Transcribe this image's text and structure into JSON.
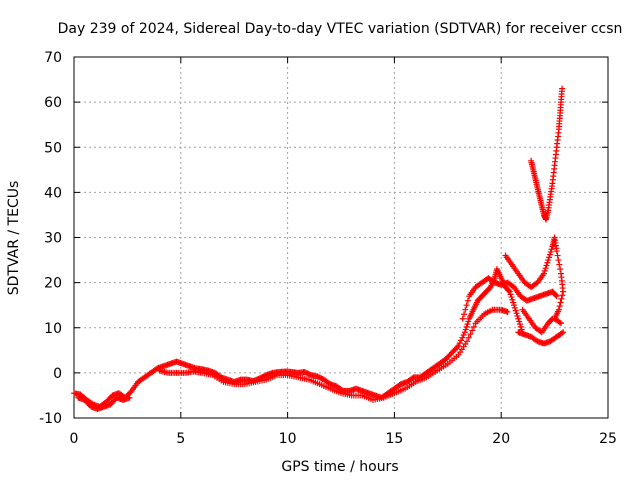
{
  "chart_data": {
    "type": "scatter",
    "title": "Day 239 of 2024, Sidereal Day-to-day VTEC variation (SDTVAR) for receiver ccsn",
    "xlabel": "GPS time / hours",
    "ylabel": "SDTVAR / TECUs",
    "xlim": [
      0,
      25
    ],
    "ylim": [
      -10,
      70
    ],
    "xticks": [
      0,
      5,
      10,
      15,
      20,
      25
    ],
    "yticks": [
      -10,
      0,
      10,
      20,
      30,
      40,
      50,
      60,
      70
    ],
    "grid": true,
    "marker": "+",
    "color": "#ff0000",
    "series": [
      {
        "name": "main",
        "points": [
          [
            0.0,
            -4.5
          ],
          [
            0.3,
            -4.8
          ],
          [
            0.6,
            -6
          ],
          [
            0.9,
            -7
          ],
          [
            1.2,
            -7.5
          ],
          [
            1.5,
            -6.5
          ],
          [
            1.8,
            -5
          ],
          [
            2.1,
            -4.5
          ],
          [
            2.4,
            -5.5
          ],
          [
            2.7,
            -4
          ],
          [
            3.0,
            -2
          ],
          [
            3.3,
            -1
          ],
          [
            3.6,
            0
          ],
          [
            3.9,
            1
          ],
          [
            4.2,
            1.5
          ],
          [
            4.5,
            2
          ],
          [
            4.8,
            2.5
          ],
          [
            5.1,
            2
          ],
          [
            5.4,
            1.5
          ],
          [
            5.7,
            1
          ],
          [
            6.0,
            0.8
          ],
          [
            6.3,
            0.5
          ],
          [
            6.6,
            0
          ],
          [
            6.9,
            -1
          ],
          [
            7.2,
            -1.5
          ],
          [
            7.5,
            -2
          ],
          [
            7.8,
            -1.5
          ],
          [
            8.1,
            -1.5
          ],
          [
            8.4,
            -1.8
          ],
          [
            8.7,
            -1.2
          ],
          [
            9.0,
            -0.5
          ],
          [
            9.3,
            0
          ],
          [
            9.6,
            0.2
          ],
          [
            9.9,
            0.3
          ],
          [
            10.2,
            0.2
          ],
          [
            10.5,
            0
          ],
          [
            10.8,
            0.2
          ],
          [
            11.1,
            -0.5
          ],
          [
            11.4,
            -0.8
          ],
          [
            11.7,
            -1.5
          ],
          [
            12.0,
            -2.5
          ],
          [
            12.3,
            -3
          ],
          [
            12.6,
            -4
          ],
          [
            12.9,
            -4
          ],
          [
            13.2,
            -3.5
          ],
          [
            13.5,
            -4
          ],
          [
            13.8,
            -4.5
          ],
          [
            14.1,
            -5
          ],
          [
            14.4,
            -5.5
          ],
          [
            14.7,
            -4.5
          ],
          [
            15.0,
            -3.5
          ],
          [
            15.3,
            -2.5
          ],
          [
            15.6,
            -2
          ],
          [
            15.9,
            -1
          ],
          [
            16.2,
            -1
          ],
          [
            16.5,
            0
          ],
          [
            16.8,
            1
          ],
          [
            17.1,
            2
          ],
          [
            17.4,
            3
          ],
          [
            17.7,
            4.5
          ],
          [
            18.0,
            6
          ],
          [
            18.3,
            9
          ],
          [
            18.5,
            12
          ],
          [
            18.7,
            14
          ],
          [
            18.9,
            16
          ],
          [
            19.1,
            17
          ],
          [
            19.3,
            18
          ],
          [
            19.5,
            19
          ],
          [
            19.7,
            21
          ],
          [
            19.8,
            23
          ],
          [
            20.0,
            21
          ],
          [
            20.2,
            19
          ],
          [
            20.4,
            18
          ],
          [
            20.6,
            15
          ],
          [
            20.8,
            12
          ],
          [
            21.0,
            9
          ]
        ]
      },
      {
        "name": "lower-band",
        "points": [
          [
            0.2,
            -5.5
          ],
          [
            0.5,
            -6
          ],
          [
            0.8,
            -7.5
          ],
          [
            1.1,
            -8
          ],
          [
            1.4,
            -7.5
          ],
          [
            1.7,
            -7
          ],
          [
            2.0,
            -5.5
          ],
          [
            2.3,
            -6
          ],
          [
            2.6,
            -5.5
          ],
          [
            4.0,
            0.5
          ],
          [
            4.4,
            0
          ],
          [
            4.8,
            0
          ],
          [
            5.2,
            0
          ],
          [
            5.6,
            0.3
          ],
          [
            6.0,
            0
          ],
          [
            6.5,
            -0.5
          ],
          [
            7.0,
            -2
          ],
          [
            7.5,
            -2.5
          ],
          [
            8.0,
            -2.5
          ],
          [
            8.5,
            -2
          ],
          [
            9.0,
            -1.5
          ],
          [
            9.5,
            -0.5
          ],
          [
            10.0,
            -0.5
          ],
          [
            10.5,
            -1
          ],
          [
            11.0,
            -1.5
          ],
          [
            11.5,
            -2.5
          ],
          [
            12.0,
            -3.5
          ],
          [
            12.5,
            -4.5
          ],
          [
            13.0,
            -5
          ],
          [
            13.5,
            -5
          ],
          [
            14.0,
            -6
          ],
          [
            14.5,
            -5.5
          ],
          [
            15.0,
            -4.5
          ],
          [
            15.5,
            -3.5
          ],
          [
            16.0,
            -2
          ],
          [
            16.5,
            -1
          ],
          [
            17.0,
            0.5
          ],
          [
            17.5,
            2
          ],
          [
            18.0,
            4
          ],
          [
            18.4,
            7
          ],
          [
            18.8,
            11
          ],
          [
            19.2,
            13
          ],
          [
            19.6,
            14
          ],
          [
            20.0,
            14
          ],
          [
            20.3,
            13.5
          ]
        ]
      },
      {
        "name": "upper-branch",
        "points": [
          [
            18.2,
            12
          ],
          [
            18.5,
            17
          ],
          [
            18.8,
            19
          ],
          [
            19.1,
            20
          ],
          [
            19.4,
            21
          ],
          [
            19.7,
            20
          ],
          [
            20.0,
            19.5
          ],
          [
            20.3,
            20
          ],
          [
            20.6,
            19
          ],
          [
            20.9,
            17
          ],
          [
            21.2,
            16
          ],
          [
            21.5,
            16.5
          ],
          [
            21.8,
            17
          ],
          [
            22.1,
            17.5
          ],
          [
            22.4,
            18
          ],
          [
            22.6,
            17
          ]
        ]
      },
      {
        "name": "right-tail",
        "points": [
          [
            20.2,
            26
          ],
          [
            20.5,
            24
          ],
          [
            20.8,
            22
          ],
          [
            21.1,
            20
          ],
          [
            21.4,
            19
          ],
          [
            21.7,
            20
          ],
          [
            22.0,
            22
          ],
          [
            22.2,
            25
          ],
          [
            22.4,
            28
          ],
          [
            22.5,
            30
          ],
          [
            22.6,
            27
          ],
          [
            22.8,
            22
          ],
          [
            22.9,
            18
          ],
          [
            22.7,
            14
          ],
          [
            22.5,
            12
          ],
          [
            22.8,
            11
          ],
          [
            20.8,
            9
          ],
          [
            21.1,
            8.5
          ],
          [
            21.4,
            8
          ],
          [
            21.7,
            7
          ],
          [
            22.0,
            6.5
          ],
          [
            22.3,
            7
          ],
          [
            22.6,
            8
          ],
          [
            22.9,
            9
          ],
          [
            21.0,
            14
          ],
          [
            21.3,
            12
          ],
          [
            21.6,
            10
          ],
          [
            21.9,
            9
          ],
          [
            22.2,
            11
          ],
          [
            22.4,
            12
          ]
        ]
      },
      {
        "name": "spike",
        "points": [
          [
            21.4,
            47
          ],
          [
            21.5,
            45
          ],
          [
            21.6,
            43
          ],
          [
            21.7,
            41
          ],
          [
            21.8,
            39
          ],
          [
            21.9,
            37
          ],
          [
            22.0,
            35
          ],
          [
            22.1,
            34
          ],
          [
            22.2,
            36
          ],
          [
            22.3,
            39
          ],
          [
            22.4,
            42
          ],
          [
            22.5,
            46
          ],
          [
            22.6,
            50
          ],
          [
            22.7,
            54
          ],
          [
            22.75,
            57
          ],
          [
            22.8,
            60
          ],
          [
            22.85,
            63
          ]
        ]
      }
    ]
  }
}
